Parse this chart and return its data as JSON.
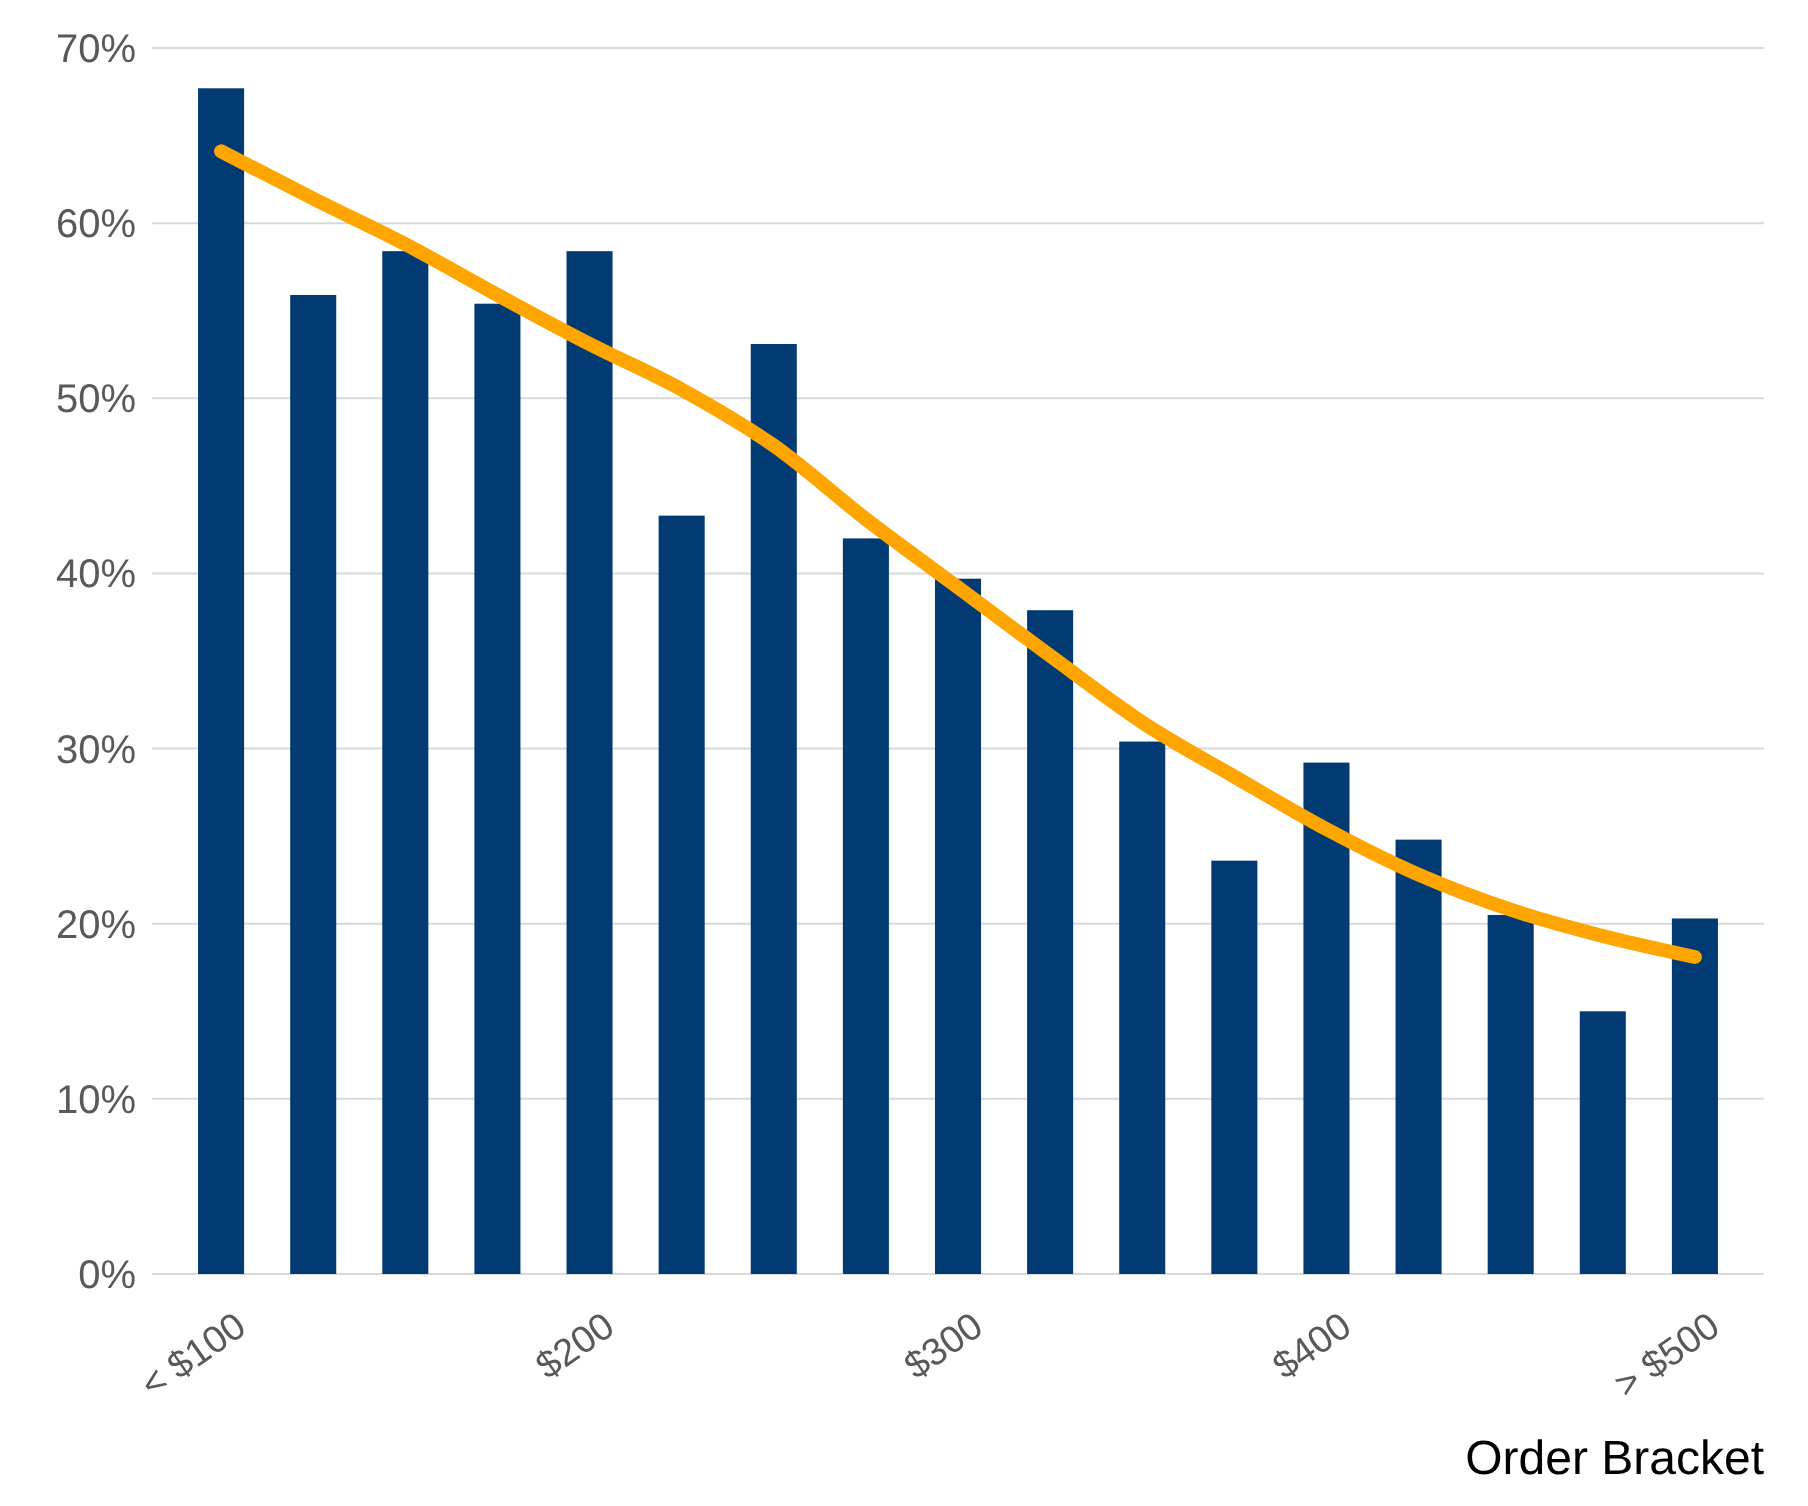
{
  "chart_data": {
    "type": "bar",
    "xlabel": "Order Bracket",
    "categories": [
      "< $100",
      null,
      null,
      null,
      "$200",
      null,
      null,
      null,
      "$300",
      null,
      null,
      null,
      "$400",
      null,
      null,
      null,
      "> $500"
    ],
    "series": [
      {
        "color": "#023b73",
        "values": [
          67.7,
          55.9,
          58.4,
          55.4,
          58.4,
          43.3,
          53.1,
          42.0,
          39.7,
          37.9,
          30.4,
          23.6,
          29.2,
          24.8,
          20.5,
          15.0,
          20.3
        ]
      },
      {
        "type": "line",
        "color": "#ffa500",
        "values": [
          64.1,
          61.4,
          58.8,
          55.9,
          53.1,
          50.5,
          47.3,
          43.1,
          39.2,
          35.3,
          31.5,
          28.4,
          25.4,
          22.8,
          20.8,
          19.3,
          18.1
        ]
      }
    ],
    "ylim": [
      0,
      70
    ],
    "yticks": [
      {
        "value": 0,
        "label": "0%"
      },
      {
        "value": 10,
        "label": "10%"
      },
      {
        "value": 20,
        "label": "20%"
      },
      {
        "value": 30,
        "label": "30%"
      },
      {
        "value": 40,
        "label": "40%"
      },
      {
        "value": 50,
        "label": "50%"
      },
      {
        "value": 60,
        "label": "60%"
      },
      {
        "value": 70,
        "label": "70%"
      }
    ],
    "grid": "y"
  }
}
